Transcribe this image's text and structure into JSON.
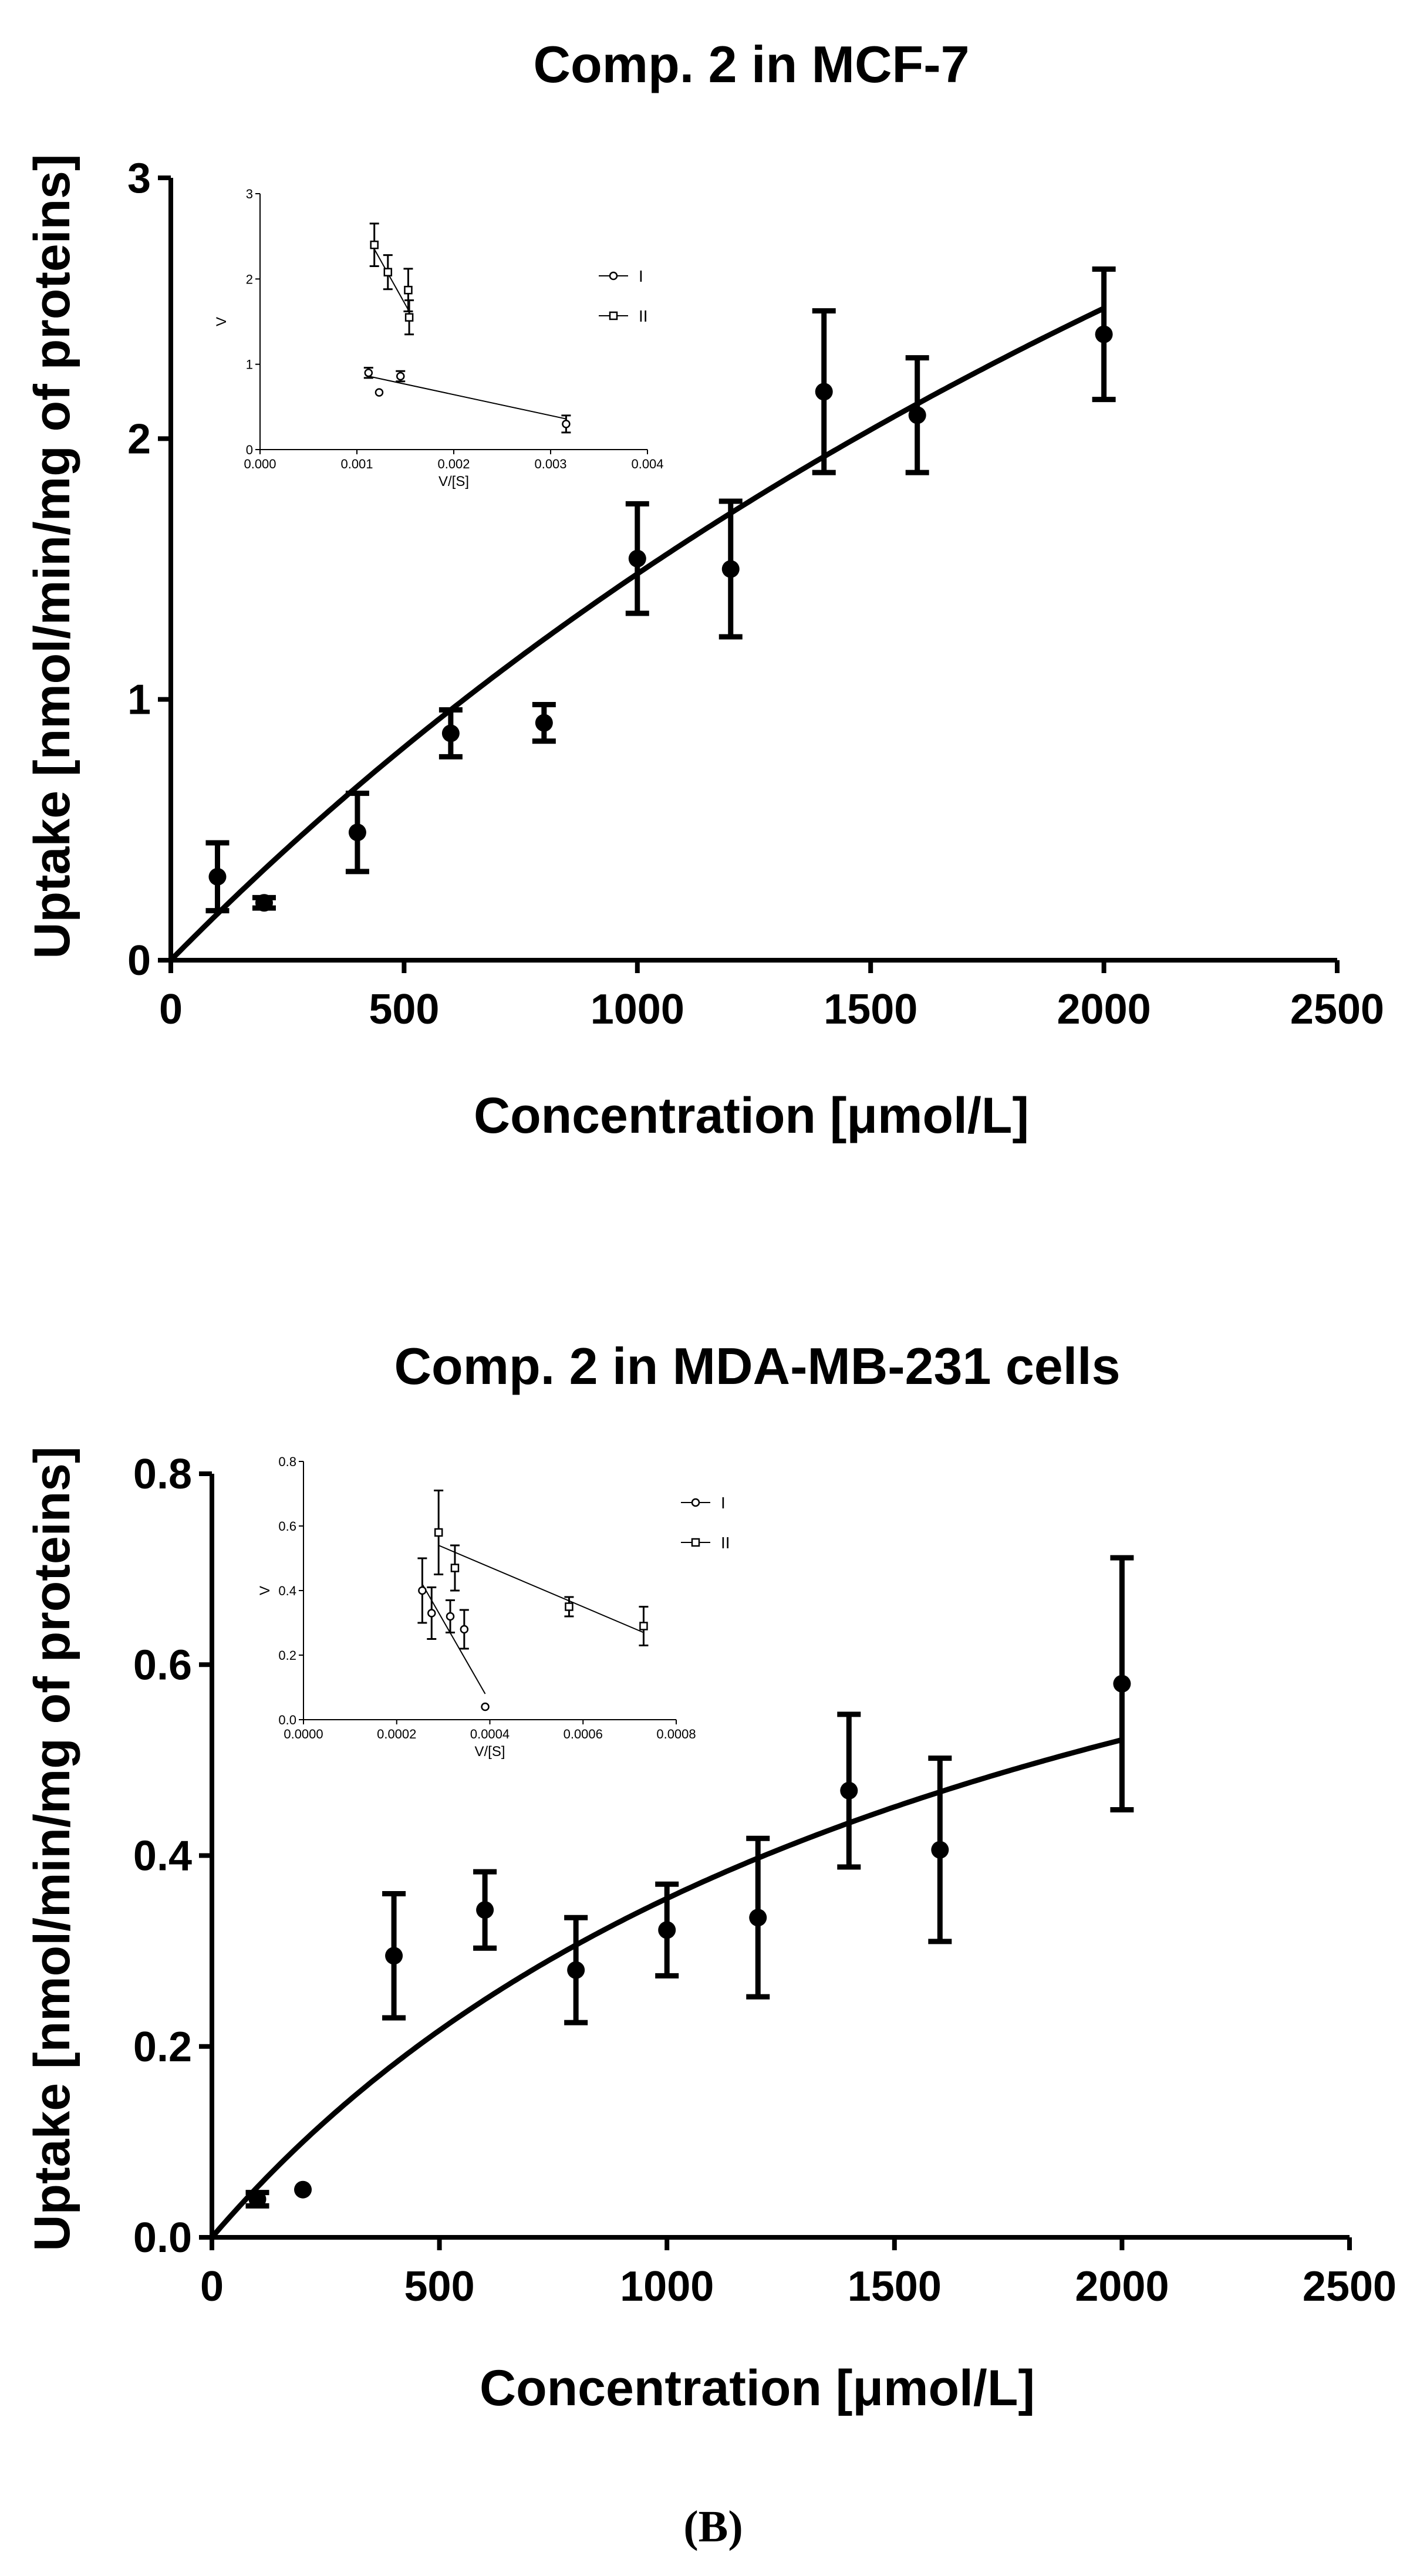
{
  "panel_label": "(B)",
  "colors": {
    "ink": "#000000",
    "background": "#ffffff"
  },
  "chart_data": [
    {
      "type": "scatter",
      "title": "Comp. 2 in MCF-7",
      "xlabel": "Concentration [μmol/L]",
      "ylabel": "Uptake [nmol/min/mg of proteins]",
      "xlim": [
        0,
        2500
      ],
      "ylim": [
        0,
        3
      ],
      "xticks": [
        0,
        500,
        1000,
        1500,
        2000,
        2500
      ],
      "yticks": [
        0,
        1,
        2,
        3
      ],
      "xtick_labels": [
        "0",
        "500",
        "1000",
        "1500",
        "2000",
        "2500"
      ],
      "ytick_labels": [
        "0",
        "1",
        "2",
        "3"
      ],
      "grid": false,
      "points": [
        {
          "x": 100,
          "y": 0.32,
          "err": 0.13
        },
        {
          "x": 200,
          "y": 0.22,
          "err": 0.02
        },
        {
          "x": 400,
          "y": 0.49,
          "err": 0.15
        },
        {
          "x": 600,
          "y": 0.87,
          "err": 0.09
        },
        {
          "x": 800,
          "y": 0.91,
          "err": 0.07
        },
        {
          "x": 1000,
          "y": 1.54,
          "err": 0.21
        },
        {
          "x": 1200,
          "y": 1.5,
          "err": 0.26
        },
        {
          "x": 1400,
          "y": 2.18,
          "err": 0.31
        },
        {
          "x": 1600,
          "y": 2.09,
          "err": 0.22
        },
        {
          "x": 2000,
          "y": 2.4,
          "err": 0.25
        }
      ],
      "fit": {
        "model": "michaelis-menten",
        "vmax": 8.0,
        "km": 4400,
        "x_range": [
          0,
          2000
        ]
      },
      "inset": {
        "type": "scatter",
        "xlabel": "V/[S]",
        "ylabel": "V",
        "xlim": [
          0,
          0.004
        ],
        "ylim": [
          0,
          3
        ],
        "xticks": [
          0,
          0.001,
          0.002,
          0.003,
          0.004
        ],
        "yticks": [
          0,
          1,
          2,
          3
        ],
        "xtick_labels": [
          "0.000",
          "0.001",
          "0.002",
          "0.003",
          "0.004"
        ],
        "ytick_labels": [
          "0",
          "1",
          "2",
          "3"
        ],
        "legend_position": "top-right",
        "series": [
          {
            "name": "I",
            "marker": "circle",
            "points": [
              {
                "x": 0.00112,
                "y": 0.9,
                "err": 0.06
              },
              {
                "x": 0.00123,
                "y": 0.67,
                "err": 0
              },
              {
                "x": 0.00145,
                "y": 0.86,
                "err": 0.06
              },
              {
                "x": 0.00316,
                "y": 0.3,
                "err": 0.1
              }
            ],
            "line": [
              [
                0.00112,
                0.86
              ],
              [
                0.00316,
                0.36
              ]
            ]
          },
          {
            "name": "II",
            "marker": "square",
            "points": [
              {
                "x": 0.00118,
                "y": 2.4,
                "err": 0.25
              },
              {
                "x": 0.00132,
                "y": 2.08,
                "err": 0.2
              },
              {
                "x": 0.00153,
                "y": 1.87,
                "err": 0.25
              },
              {
                "x": 0.00154,
                "y": 1.55,
                "err": 0.2
              }
            ],
            "line": [
              [
                0.00118,
                2.35
              ],
              [
                0.00154,
                1.62
              ]
            ]
          }
        ]
      }
    },
    {
      "type": "scatter",
      "title": "Comp. 2 in MDA-MB-231 cells",
      "xlabel": "Concentration [μmol/L]",
      "ylabel": "Uptake [nmol/min/mg of proteins]",
      "xlim": [
        0,
        2500
      ],
      "ylim": [
        0,
        0.8
      ],
      "xticks": [
        0,
        500,
        1000,
        1500,
        2000,
        2500
      ],
      "yticks": [
        0,
        0.2,
        0.4,
        0.6,
        0.8
      ],
      "xtick_labels": [
        "0",
        "500",
        "1000",
        "1500",
        "2000",
        "2500"
      ],
      "ytick_labels": [
        "0.0",
        "0.2",
        "0.4",
        "0.6",
        "0.8"
      ],
      "grid": false,
      "points": [
        {
          "x": 100,
          "y": 0.04,
          "err": 0.007
        },
        {
          "x": 200,
          "y": 0.05,
          "err": 0
        },
        {
          "x": 400,
          "y": 0.295,
          "err": 0.065
        },
        {
          "x": 600,
          "y": 0.343,
          "err": 0.04
        },
        {
          "x": 800,
          "y": 0.28,
          "err": 0.055
        },
        {
          "x": 1000,
          "y": 0.322,
          "err": 0.048
        },
        {
          "x": 1200,
          "y": 0.335,
          "err": 0.083
        },
        {
          "x": 1400,
          "y": 0.468,
          "err": 0.08
        },
        {
          "x": 1600,
          "y": 0.406,
          "err": 0.096
        },
        {
          "x": 2000,
          "y": 0.58,
          "err": 0.132
        }
      ],
      "fit": {
        "model": "michaelis-menten",
        "vmax": 0.98,
        "km": 1760,
        "x_range": [
          0,
          2000
        ]
      },
      "inset": {
        "type": "scatter",
        "xlabel": "V/[S]",
        "ylabel": "V",
        "xlim": [
          0,
          0.0008
        ],
        "ylim": [
          0,
          0.8
        ],
        "xticks": [
          0,
          0.0002,
          0.0004,
          0.0006,
          0.0008
        ],
        "yticks": [
          0,
          0.2,
          0.4,
          0.6,
          0.8
        ],
        "xtick_labels": [
          "0.0000",
          "0.0002",
          "0.0004",
          "0.0006",
          "0.0008"
        ],
        "ytick_labels": [
          "0.0",
          "0.2",
          "0.4",
          "0.6",
          "0.8"
        ],
        "legend_position": "top-right",
        "series": [
          {
            "name": "I",
            "marker": "circle",
            "points": [
              {
                "x": 0.000255,
                "y": 0.4,
                "err": 0.1
              },
              {
                "x": 0.000275,
                "y": 0.33,
                "err": 0.08
              },
              {
                "x": 0.000315,
                "y": 0.32,
                "err": 0.05
              },
              {
                "x": 0.000345,
                "y": 0.28,
                "err": 0.06
              },
              {
                "x": 0.00039,
                "y": 0.04,
                "err": 0
              }
            ],
            "line": [
              [
                0.000255,
                0.42
              ],
              [
                0.00039,
                0.08
              ]
            ]
          },
          {
            "name": "II",
            "marker": "square",
            "points": [
              {
                "x": 0.00029,
                "y": 0.58,
                "err": 0.13
              },
              {
                "x": 0.000325,
                "y": 0.47,
                "err": 0.07
              },
              {
                "x": 0.00057,
                "y": 0.35,
                "err": 0.03
              },
              {
                "x": 0.00073,
                "y": 0.29,
                "err": 0.06
              }
            ],
            "line": [
              [
                0.00029,
                0.54
              ],
              [
                0.00073,
                0.27
              ]
            ]
          }
        ]
      }
    }
  ]
}
